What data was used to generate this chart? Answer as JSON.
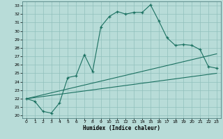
{
  "xlabel": "Humidex (Indice chaleur)",
  "bg_color": "#b8dcd8",
  "grid_color": "#90c0bc",
  "line_color": "#1a7060",
  "xlim": [
    -0.5,
    23.5
  ],
  "ylim": [
    19.7,
    33.5
  ],
  "xticks": [
    0,
    1,
    2,
    3,
    4,
    5,
    6,
    7,
    8,
    9,
    10,
    11,
    12,
    13,
    14,
    15,
    16,
    17,
    18,
    19,
    20,
    21,
    22,
    23
  ],
  "yticks": [
    20,
    21,
    22,
    23,
    24,
    25,
    26,
    27,
    28,
    29,
    30,
    31,
    32,
    33
  ],
  "series1_x": [
    0,
    1,
    2,
    3,
    4,
    5,
    6,
    7,
    8,
    9,
    10,
    11,
    12,
    13,
    14,
    15,
    16,
    17,
    18,
    19,
    20,
    21,
    22,
    23
  ],
  "series1_y": [
    22.0,
    21.7,
    20.5,
    20.3,
    21.5,
    24.5,
    24.7,
    27.2,
    25.2,
    30.5,
    31.7,
    32.3,
    32.0,
    32.2,
    32.2,
    33.1,
    31.2,
    29.2,
    28.3,
    28.4,
    28.3,
    27.8,
    25.8,
    25.6
  ],
  "series2_x": [
    0,
    23
  ],
  "series2_y": [
    22.0,
    27.3
  ],
  "series3_x": [
    0,
    23
  ],
  "series3_y": [
    22.0,
    25.0
  ]
}
